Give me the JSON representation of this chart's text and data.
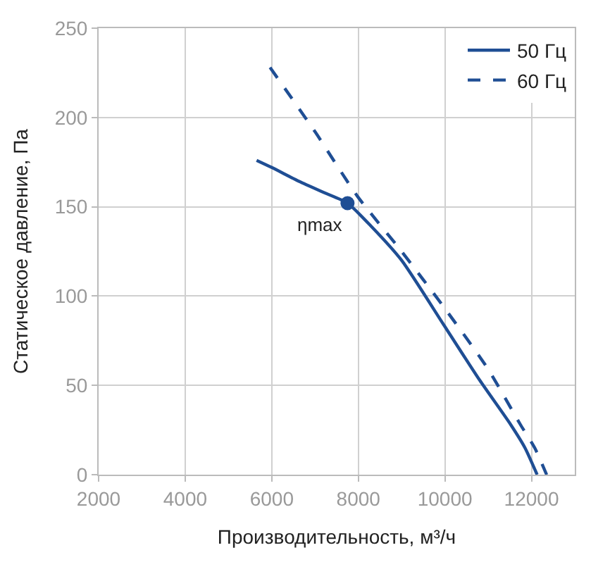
{
  "chart_data": {
    "type": "line",
    "xlabel": "Производительность, м³/ч",
    "ylabel": "Статическое давление, Па",
    "xlim": [
      2000,
      13000
    ],
    "xticks": [
      2000,
      4000,
      6000,
      8000,
      10000,
      12000
    ],
    "ylim": [
      0,
      250
    ],
    "yticks": [
      0,
      50,
      100,
      150,
      200,
      250
    ],
    "grid": true,
    "legend": "top right",
    "marker": "none",
    "series": [
      {
        "name": "50 Гц",
        "color": "#1f4e94",
        "line_style": "solid",
        "x": [
          5650,
          6000,
          6650,
          7200,
          7750,
          8300,
          9000,
          9970,
          10800,
          11520,
          11850,
          12130
        ],
        "values": [
          176,
          172,
          164,
          158,
          152,
          139,
          120,
          84,
          53,
          28,
          15,
          0
        ]
      },
      {
        "name": "60 Гц",
        "color": "#1f4e94",
        "line_style": "dashed",
        "x": [
          5960,
          7000,
          7975,
          9000,
          9970,
          11000,
          11745,
          12075,
          12350
        ],
        "values": [
          228,
          192,
          156,
          125,
          94,
          59,
          28,
          15,
          0
        ]
      },
      {
        "type": "scatter",
        "marker": "circle",
        "color": "#1f4e94",
        "x": [
          7750
        ],
        "values": [
          152
        ]
      }
    ],
    "annotations": [
      {
        "text": "ηmax",
        "x": 7750,
        "y": 152
      }
    ]
  }
}
